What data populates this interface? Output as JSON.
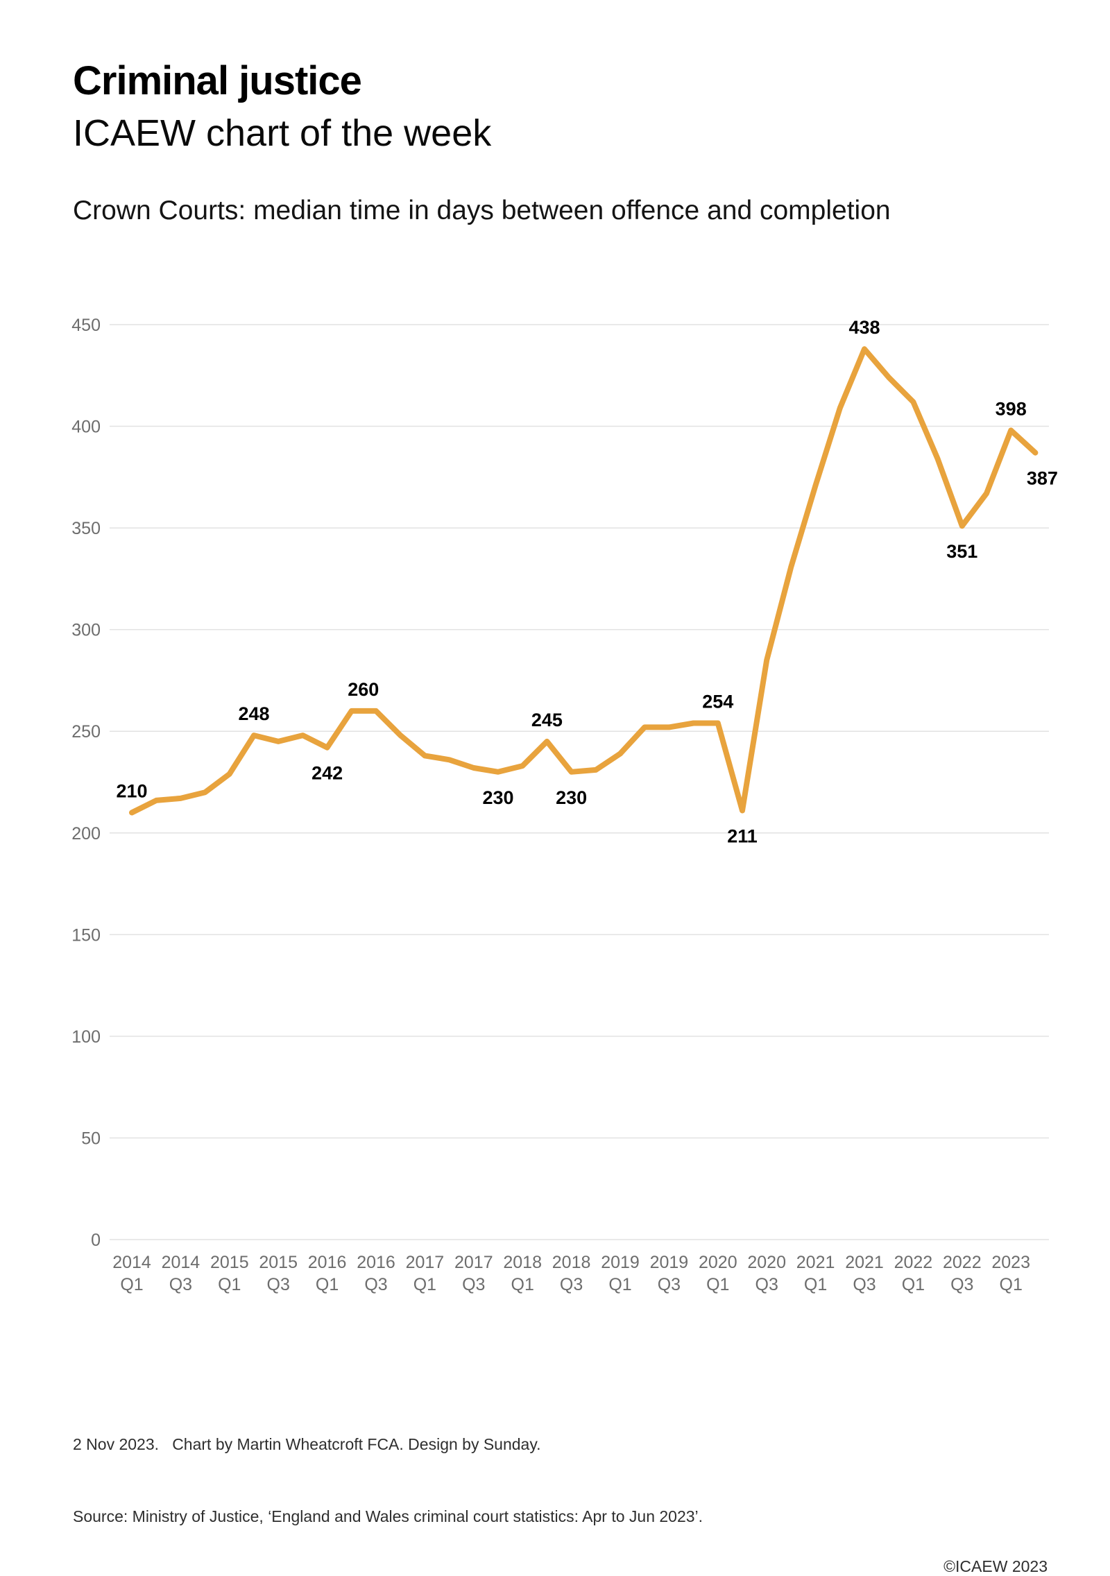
{
  "header": {
    "title": "Criminal justice",
    "subtitle": "ICAEW chart of the week",
    "chart_title": "Crown Courts: median time in days between offence and completion"
  },
  "chart_data": {
    "type": "line",
    "title": "Crown Courts: median time in days between offence and completion",
    "line_color": "#E8A33D",
    "grid": true,
    "legend": "none",
    "ylim": [
      0,
      450
    ],
    "ytick_step": 50,
    "x_tick_every": 2,
    "x": [
      "2014 Q1",
      "2014 Q2",
      "2014 Q3",
      "2014 Q4",
      "2015 Q1",
      "2015 Q2",
      "2015 Q3",
      "2015 Q4",
      "2016 Q1",
      "2016 Q2",
      "2016 Q3",
      "2016 Q4",
      "2017 Q1",
      "2017 Q2",
      "2017 Q3",
      "2017 Q4",
      "2018 Q1",
      "2018 Q2",
      "2018 Q3",
      "2018 Q4",
      "2019 Q1",
      "2019 Q2",
      "2019 Q3",
      "2019 Q4",
      "2020 Q1",
      "2020 Q2",
      "2020 Q3",
      "2020 Q4",
      "2021 Q1",
      "2021 Q2",
      "2021 Q3",
      "2021 Q4",
      "2022 Q1",
      "2022 Q2",
      "2022 Q3",
      "2022 Q4",
      "2023 Q1",
      "2023 Q2"
    ],
    "values": [
      210,
      216,
      217,
      220,
      229,
      248,
      245,
      248,
      242,
      260,
      260,
      248,
      238,
      236,
      232,
      230,
      233,
      245,
      230,
      231,
      239,
      252,
      252,
      254,
      254,
      211,
      285,
      331,
      371,
      409,
      438,
      424,
      412,
      384,
      351,
      367,
      398,
      387
    ],
    "labeled_points": [
      {
        "x": "2014 Q1",
        "value": 210,
        "placement": "above"
      },
      {
        "x": "2015 Q2",
        "value": 248,
        "placement": "above"
      },
      {
        "x": "2016 Q1",
        "value": 242,
        "placement": "below"
      },
      {
        "x": "2016 Q2",
        "value": 260,
        "placement": "above",
        "dx": 17
      },
      {
        "x": "2017 Q4",
        "value": 230,
        "placement": "below"
      },
      {
        "x": "2018 Q2",
        "value": 245,
        "placement": "above"
      },
      {
        "x": "2018 Q3",
        "value": 230,
        "placement": "below"
      },
      {
        "x": "2020 Q1",
        "value": 254,
        "placement": "above"
      },
      {
        "x": "2020 Q2",
        "value": 211,
        "placement": "below"
      },
      {
        "x": "2021 Q3",
        "value": 438,
        "placement": "above"
      },
      {
        "x": "2022 Q3",
        "value": 351,
        "placement": "below"
      },
      {
        "x": "2023 Q1",
        "value": 398,
        "placement": "above"
      },
      {
        "x": "2023 Q2",
        "value": 387,
        "placement": "below",
        "dx": 10
      }
    ]
  },
  "footer": {
    "line1": "2 Nov 2023.   Chart by Martin Wheatcroft FCA. Design by Sunday.",
    "line2": "Source: Ministry of Justice, ‘England and Wales criminal court statistics: Apr to Jun 2023’.",
    "copyright": "©ICAEW 2023"
  }
}
